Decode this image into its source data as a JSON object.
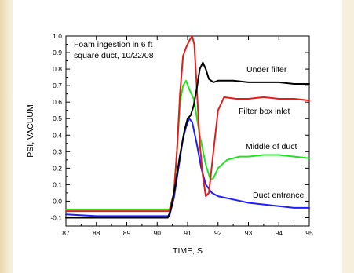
{
  "chart_data": {
    "type": "line",
    "title": "",
    "annotation": [
      "Foam ingestion in 6 ft",
      "square duct, 10/22/08"
    ],
    "xlabel": "TIME, S",
    "ylabel": "PSI, VACUUM",
    "xlim": [
      87,
      95
    ],
    "ylim": [
      -0.15,
      1.0
    ],
    "x_ticks": [
      "87",
      "88",
      "89",
      "90",
      "91",
      "92",
      "93",
      "94",
      "95"
    ],
    "y_ticks": [
      "-0.1",
      "0.0",
      "0.1",
      "0.2",
      "0.3",
      "0.4",
      "0.5",
      "0.6",
      "0.7",
      "0.8",
      "0.9",
      "1.0"
    ],
    "grid": false,
    "series": [
      {
        "name": "Under filter",
        "color": "#000000",
        "points": [
          [
            87,
            -0.1
          ],
          [
            88,
            -0.1
          ],
          [
            89,
            -0.1
          ],
          [
            90,
            -0.1
          ],
          [
            90.35,
            -0.1
          ],
          [
            90.45,
            -0.05
          ],
          [
            90.6,
            0.1
          ],
          [
            90.75,
            0.28
          ],
          [
            90.9,
            0.43
          ],
          [
            91.0,
            0.5
          ],
          [
            91.1,
            0.52
          ],
          [
            91.2,
            0.58
          ],
          [
            91.3,
            0.68
          ],
          [
            91.4,
            0.8
          ],
          [
            91.5,
            0.84
          ],
          [
            91.6,
            0.8
          ],
          [
            91.7,
            0.74
          ],
          [
            91.85,
            0.72
          ],
          [
            92,
            0.73
          ],
          [
            92.5,
            0.73
          ],
          [
            93,
            0.72
          ],
          [
            93.5,
            0.72
          ],
          [
            94,
            0.72
          ],
          [
            94.5,
            0.71
          ],
          [
            95,
            0.71
          ]
        ]
      },
      {
        "name": "Filter box inlet",
        "color": "#e41c1c",
        "points": [
          [
            87,
            -0.06
          ],
          [
            88,
            -0.06
          ],
          [
            89,
            -0.06
          ],
          [
            90,
            -0.06
          ],
          [
            90.4,
            -0.06
          ],
          [
            90.55,
            0.05
          ],
          [
            90.65,
            0.3
          ],
          [
            90.75,
            0.65
          ],
          [
            90.85,
            0.88
          ],
          [
            90.95,
            0.93
          ],
          [
            91.05,
            0.97
          ],
          [
            91.15,
            1.0
          ],
          [
            91.22,
            0.95
          ],
          [
            91.3,
            0.7
          ],
          [
            91.4,
            0.35
          ],
          [
            91.5,
            0.15
          ],
          [
            91.6,
            0.03
          ],
          [
            91.7,
            0.05
          ],
          [
            91.85,
            0.3
          ],
          [
            92,
            0.55
          ],
          [
            92.2,
            0.63
          ],
          [
            92.6,
            0.62
          ],
          [
            93,
            0.62
          ],
          [
            93.5,
            0.63
          ],
          [
            94,
            0.62
          ],
          [
            94.5,
            0.62
          ],
          [
            95,
            0.61
          ]
        ]
      },
      {
        "name": "Middle of duct",
        "color": "#1ee61e",
        "points": [
          [
            87,
            -0.05
          ],
          [
            88,
            -0.05
          ],
          [
            89,
            -0.05
          ],
          [
            90,
            -0.05
          ],
          [
            90.4,
            -0.05
          ],
          [
            90.55,
            0.05
          ],
          [
            90.65,
            0.3
          ],
          [
            90.75,
            0.6
          ],
          [
            90.85,
            0.7
          ],
          [
            90.95,
            0.73
          ],
          [
            91.05,
            0.68
          ],
          [
            91.2,
            0.62
          ],
          [
            91.4,
            0.4
          ],
          [
            91.6,
            0.22
          ],
          [
            91.75,
            0.13
          ],
          [
            91.85,
            0.14
          ],
          [
            92,
            0.2
          ],
          [
            92.3,
            0.25
          ],
          [
            92.7,
            0.27
          ],
          [
            93,
            0.27
          ],
          [
            93.5,
            0.28
          ],
          [
            94,
            0.28
          ],
          [
            94.5,
            0.27
          ],
          [
            95,
            0.26
          ]
        ]
      },
      {
        "name": "Duct entrance",
        "color": "#1e1eff",
        "points": [
          [
            87,
            -0.08
          ],
          [
            88,
            -0.09
          ],
          [
            89,
            -0.09
          ],
          [
            90,
            -0.09
          ],
          [
            90.4,
            -0.09
          ],
          [
            90.55,
            0.02
          ],
          [
            90.7,
            0.2
          ],
          [
            90.85,
            0.38
          ],
          [
            90.95,
            0.45
          ],
          [
            91.05,
            0.5
          ],
          [
            91.15,
            0.48
          ],
          [
            91.3,
            0.35
          ],
          [
            91.45,
            0.2
          ],
          [
            91.6,
            0.1
          ],
          [
            91.8,
            0.05
          ],
          [
            92,
            0.03
          ],
          [
            92.5,
            0.01
          ],
          [
            93,
            -0.01
          ],
          [
            93.5,
            -0.02
          ],
          [
            94,
            -0.03
          ],
          [
            94.5,
            -0.04
          ],
          [
            95,
            -0.04
          ]
        ]
      }
    ],
    "legend": "inline labels next to each curve"
  }
}
